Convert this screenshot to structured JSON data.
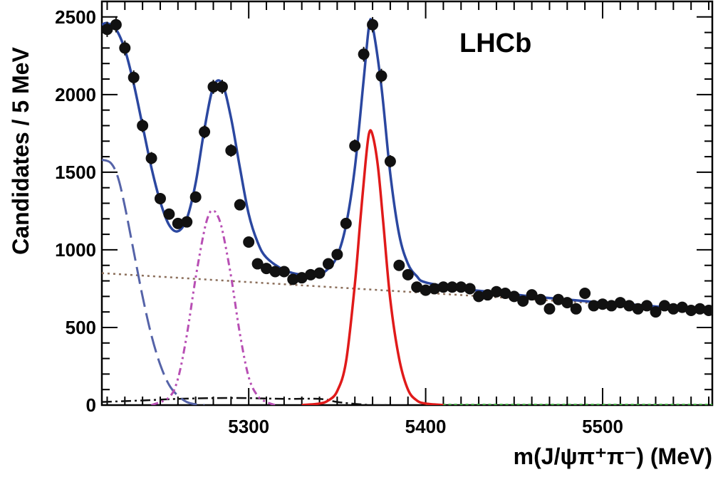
{
  "chart_data": {
    "type": "scatter",
    "experiment_label": "LHCb",
    "xlabel": "m(J/ψπ⁺π⁻) (MeV)",
    "ylabel": "Candidates / 5 MeV",
    "xlim": [
      5217,
      5562
    ],
    "ylim": [
      0,
      2600
    ],
    "x_ticks": [
      5300,
      5400,
      5500
    ],
    "y_ticks": [
      0,
      500,
      1000,
      1500,
      2000,
      2500
    ],
    "grid": false,
    "legend": "none",
    "colors": {
      "data_points": "#111111",
      "total_fit": "#2b47a0",
      "bs_signal": "#e01a1a",
      "partial_background": "#5563a8",
      "bd_signal": "#b84fb4",
      "combinatorial": "#8b6e5a",
      "misc_background": "#111111",
      "small_background": "#3cae3c"
    },
    "series": [
      {
        "kind": "data",
        "x": [
          5220,
          5225,
          5230,
          5235,
          5240,
          5245,
          5250,
          5255,
          5260,
          5265,
          5270,
          5275,
          5280,
          5285,
          5290,
          5295,
          5300,
          5305,
          5310,
          5315,
          5320,
          5325,
          5330,
          5335,
          5340,
          5345,
          5350,
          5355,
          5360,
          5365,
          5370,
          5375,
          5380,
          5385,
          5390,
          5395,
          5400,
          5405,
          5410,
          5415,
          5420,
          5425,
          5430,
          5435,
          5440,
          5445,
          5450,
          5455,
          5460,
          5465,
          5470,
          5475,
          5480,
          5485,
          5490,
          5495,
          5500,
          5505,
          5510,
          5515,
          5520,
          5525,
          5530,
          5535,
          5540,
          5545,
          5550,
          5555,
          5560
        ],
        "y": [
          2420,
          2450,
          2300,
          2110,
          1800,
          1590,
          1330,
          1230,
          1170,
          1180,
          1340,
          1760,
          2050,
          2050,
          1640,
          1290,
          1050,
          910,
          880,
          860,
          860,
          810,
          820,
          840,
          850,
          910,
          970,
          1170,
          1670,
          2260,
          2450,
          2120,
          1570,
          900,
          840,
          760,
          740,
          750,
          760,
          760,
          760,
          750,
          700,
          710,
          730,
          720,
          700,
          670,
          710,
          680,
          620,
          680,
          660,
          620,
          720,
          640,
          650,
          640,
          660,
          640,
          620,
          640,
          600,
          640,
          620,
          630,
          610,
          620,
          610
        ]
      },
      {
        "kind": "fit-total",
        "x": [
          5217,
          5220,
          5225,
          5230,
          5235,
          5240,
          5245,
          5250,
          5255,
          5260,
          5265,
          5270,
          5275,
          5280,
          5285,
          5290,
          5295,
          5300,
          5305,
          5310,
          5320,
          5330,
          5340,
          5345,
          5350,
          5355,
          5360,
          5365,
          5368,
          5370,
          5375,
          5380,
          5385,
          5390,
          5395,
          5400,
          5420,
          5440,
          5460,
          5480,
          5500,
          5520,
          5540,
          5562
        ],
        "y": [
          2450,
          2460,
          2420,
          2290,
          2070,
          1800,
          1530,
          1310,
          1160,
          1120,
          1200,
          1430,
          1780,
          2050,
          2070,
          1850,
          1530,
          1230,
          1050,
          950,
          870,
          840,
          845,
          880,
          960,
          1160,
          1530,
          2100,
          2440,
          2440,
          2050,
          1490,
          1100,
          910,
          830,
          790,
          750,
          725,
          700,
          680,
          660,
          645,
          625,
          600
        ]
      },
      {
        "kind": "bs-signal",
        "x": [
          5330,
          5340,
          5345,
          5350,
          5355,
          5360,
          5363,
          5366,
          5368,
          5370,
          5373,
          5376,
          5380,
          5385,
          5390,
          5395,
          5400,
          5410
        ],
        "y": [
          0,
          10,
          30,
          90,
          280,
          780,
          1180,
          1560,
          1750,
          1740,
          1540,
          1180,
          680,
          300,
          100,
          30,
          10,
          0
        ]
      },
      {
        "kind": "partial-background",
        "x": [
          5217,
          5222,
          5226,
          5230,
          5235,
          5240,
          5245,
          5250,
          5255,
          5260,
          5265,
          5270,
          5275
        ],
        "y": [
          1580,
          1560,
          1470,
          1280,
          990,
          700,
          450,
          260,
          130,
          60,
          20,
          5,
          0
        ]
      },
      {
        "kind": "bd-signal",
        "x": [
          5245,
          5255,
          5260,
          5265,
          5270,
          5275,
          5278,
          5280,
          5282,
          5285,
          5290,
          5295,
          5300,
          5305,
          5310,
          5315
        ],
        "y": [
          0,
          50,
          170,
          450,
          820,
          1130,
          1240,
          1250,
          1230,
          1130,
          830,
          460,
          180,
          60,
          20,
          0
        ]
      },
      {
        "kind": "combinatorial",
        "x": [
          5217,
          5562
        ],
        "y": [
          850,
          610
        ]
      },
      {
        "kind": "misc-background",
        "x": [
          5217,
          5240,
          5260,
          5280,
          5300,
          5320,
          5340,
          5350,
          5360,
          5370,
          5380
        ],
        "y": [
          20,
          30,
          40,
          45,
          45,
          40,
          40,
          20,
          8,
          0,
          0
        ]
      },
      {
        "kind": "small-background",
        "x": [
          5400,
          5562
        ],
        "y": [
          2,
          2
        ]
      }
    ]
  }
}
